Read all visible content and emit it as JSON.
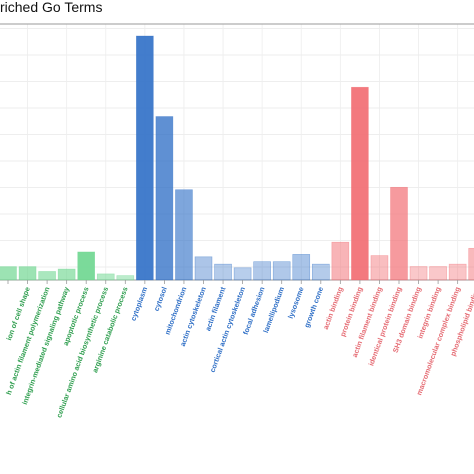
{
  "chart_data": {
    "type": "bar",
    "title": "riched Go Terms",
    "xlabel": "",
    "ylabel": "",
    "ylim": [
      0,
      100
    ],
    "grid": true,
    "legend": "none",
    "categories": [
      {
        "label": "",
        "value": 5.5,
        "group": "BP"
      },
      {
        "label": "ion of cell shape",
        "value": 5.5,
        "group": "BP"
      },
      {
        "label": "h of actin filament polymerization",
        "value": 3.5,
        "group": "BP"
      },
      {
        "label": "integrin-mediated signaling pathway",
        "value": 4.5,
        "group": "BP"
      },
      {
        "label": "apoptotic process",
        "value": 11.5,
        "group": "BP"
      },
      {
        "label": "cellular amino acid biosynthetic process",
        "value": 2.5,
        "group": "BP"
      },
      {
        "label": "arginine catabolic process",
        "value": 1.8,
        "group": "BP"
      },
      {
        "label": "cytoplasm",
        "value": 100,
        "group": "CC"
      },
      {
        "label": "cytosol",
        "value": 67,
        "group": "CC"
      },
      {
        "label": "mitochondrion",
        "value": 37,
        "group": "CC"
      },
      {
        "label": "actin cytoskeleton",
        "value": 9.5,
        "group": "CC"
      },
      {
        "label": "actin filament",
        "value": 6.5,
        "group": "CC"
      },
      {
        "label": "cortical actin cytoskeleton",
        "value": 5,
        "group": "CC"
      },
      {
        "label": "focal adhesion",
        "value": 7.5,
        "group": "CC"
      },
      {
        "label": "lamellipodium",
        "value": 7.5,
        "group": "CC"
      },
      {
        "label": "lysosome",
        "value": 10.5,
        "group": "CC"
      },
      {
        "label": "growth cone",
        "value": 6.5,
        "group": "CC"
      },
      {
        "label": "actin binding",
        "value": 15.5,
        "group": "MF"
      },
      {
        "label": "protein binding",
        "value": 79,
        "group": "MF"
      },
      {
        "label": "actin filament binding",
        "value": 10,
        "group": "MF"
      },
      {
        "label": "identical protein binding",
        "value": 38,
        "group": "MF"
      },
      {
        "label": "SH3 domain binding",
        "value": 5.5,
        "group": "MF"
      },
      {
        "label": "integrin binding",
        "value": 5.5,
        "group": "MF"
      },
      {
        "label": "macromolecular complex binding",
        "value": 6.5,
        "group": "MF"
      },
      {
        "label": "phospholipid binding",
        "value": 13,
        "group": "MF"
      }
    ],
    "colors": {
      "BP": "#2e9e4e",
      "CC": "#2f6fc6",
      "MF": "#e56b73",
      "bar_BP": "#6dd68f",
      "bar_CC": "#2f6fc6",
      "bar_MF": "#f26a70"
    }
  }
}
